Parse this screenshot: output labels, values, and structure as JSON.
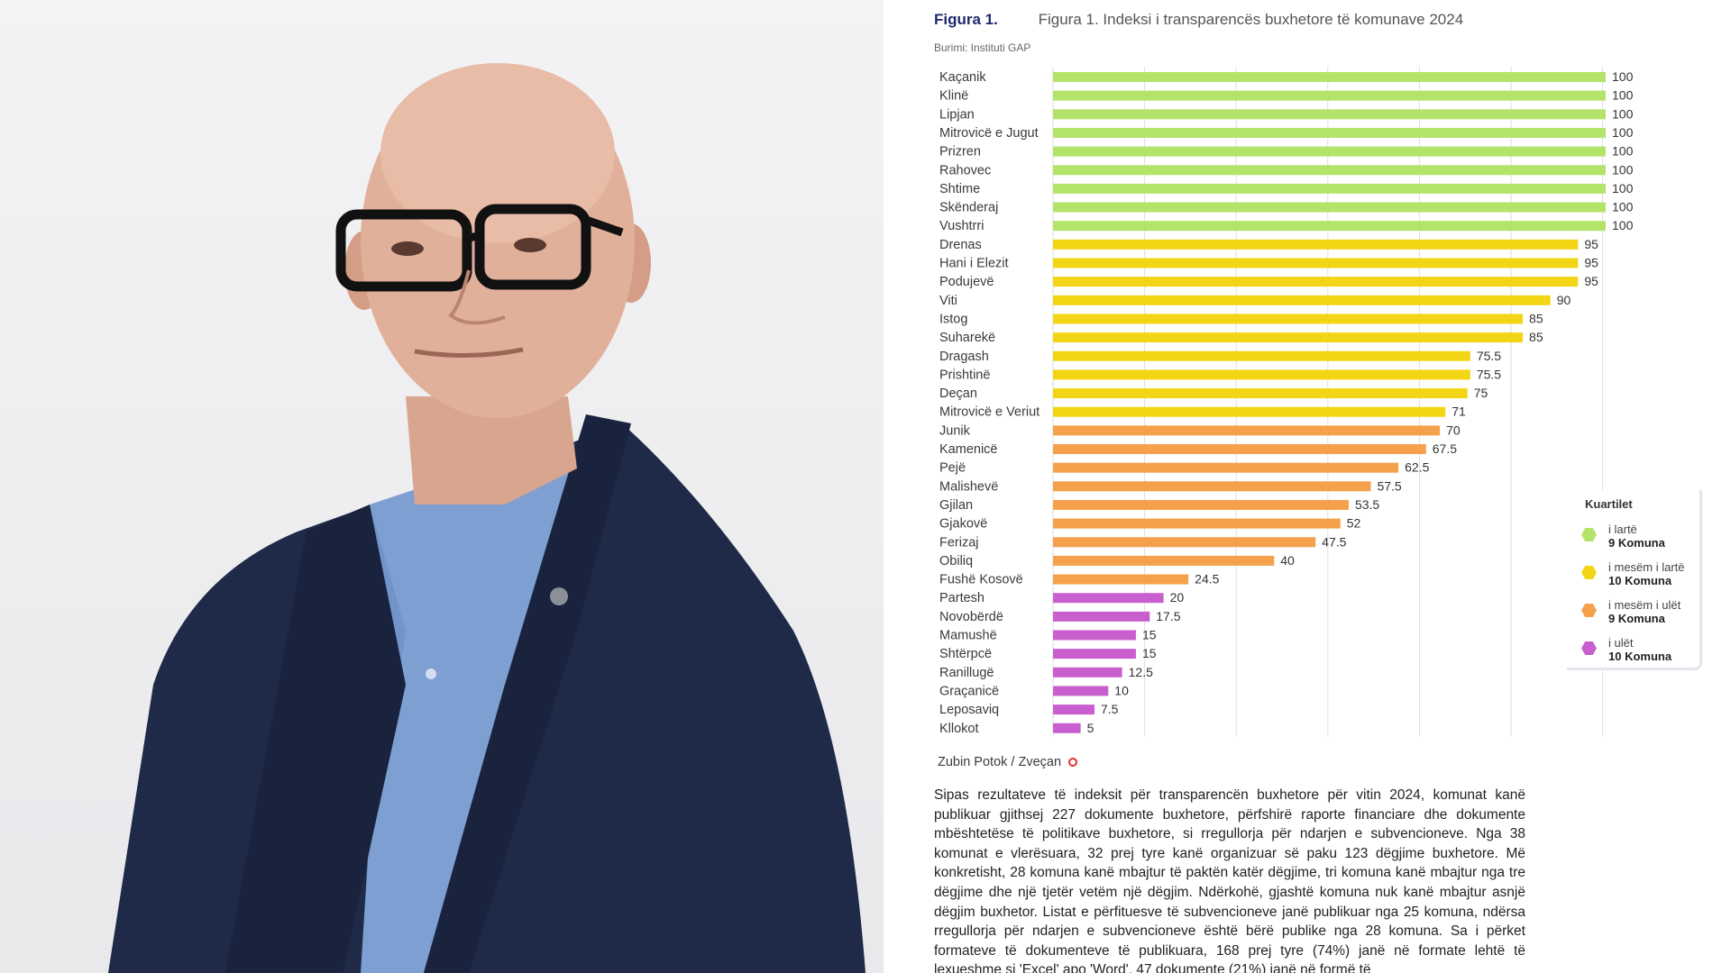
{
  "figure": {
    "label": "Figura 1.",
    "title": "Figura 1. Indeksi i transparencës buxhetore të komunave 2024",
    "source": "Burimi: Instituti GAP"
  },
  "colors": {
    "high": "#b4e36a",
    "upper_middle": "#f2d515",
    "lower_middle": "#f5a04a",
    "low": "#c95fcf"
  },
  "chart_data": {
    "type": "bar",
    "orientation": "horizontal",
    "categories": [
      "Kaçanik",
      "Klinë",
      "Lipjan",
      "Mitrovicë e Jugut",
      "Prizren",
      "Rahovec",
      "Shtime",
      "Skënderaj",
      "Vushtrri",
      "Drenas",
      "Hani i Elezit",
      "Podujevë",
      "Viti",
      "Istog",
      "Suharekë",
      "Dragash",
      "Prishtinë",
      "Deçan",
      "Mitrovicë e Veriut",
      "Junik",
      "Kamenicë",
      "Pejë",
      "Malishevë",
      "Gjilan",
      "Gjakovë",
      "Ferizaj",
      "Obiliq",
      "Fushë Kosovë",
      "Partesh",
      "Novobërdë",
      "Mamushë",
      "Shtërpcë",
      "Ranillugë",
      "Graçanicë",
      "Leposaviq",
      "Kllokot"
    ],
    "values": [
      100,
      100,
      100,
      100,
      100,
      100,
      100,
      100,
      100,
      95,
      95,
      95,
      90,
      85,
      85,
      75.5,
      75.5,
      75,
      71,
      70,
      67.5,
      62.5,
      57.5,
      53.5,
      52,
      47.5,
      40,
      24.5,
      20,
      17.5,
      15,
      15,
      12.5,
      10,
      7.5,
      5
    ],
    "value_labels": [
      "100",
      "100",
      "100",
      "100",
      "100",
      "100",
      "100",
      "100",
      "100",
      "95",
      "95",
      "95",
      "90",
      "85",
      "85",
      "75.5",
      "75.5",
      "75",
      "71",
      "70",
      "67.5",
      "62.5",
      "57.5",
      "53.5",
      "52",
      "47.5",
      "40",
      "24.5",
      "20",
      "17.5",
      "15",
      "15",
      "12.5",
      "10",
      "7.5",
      "5"
    ],
    "quartile": [
      "high",
      "high",
      "high",
      "high",
      "high",
      "high",
      "high",
      "high",
      "high",
      "upper_middle",
      "upper_middle",
      "upper_middle",
      "upper_middle",
      "upper_middle",
      "upper_middle",
      "upper_middle",
      "upper_middle",
      "upper_middle",
      "upper_middle",
      "lower_middle",
      "lower_middle",
      "lower_middle",
      "lower_middle",
      "lower_middle",
      "lower_middle",
      "lower_middle",
      "lower_middle",
      "lower_middle",
      "low",
      "low",
      "low",
      "low",
      "low",
      "low",
      "low",
      "low"
    ],
    "xlim": [
      0,
      100
    ],
    "grid": true,
    "legend": {
      "title": "Kuartilet",
      "placement": "right",
      "items": [
        {
          "key": "high",
          "label": "i lartë",
          "count": "9 Komuna"
        },
        {
          "key": "upper_middle",
          "label": "i mesëm i lartë",
          "count": "10 Komuna"
        },
        {
          "key": "lower_middle",
          "label": "i mesëm i ulët",
          "count": "9 Komuna"
        },
        {
          "key": "low",
          "label": "i ulët",
          "count": "10 Komuna"
        }
      ]
    }
  },
  "footnote": "Zubin Potok / Zveçan",
  "body_text": "Sipas rezultateve të indeksit për transparencën buxhetore për vitin 2024, komunat kanë publikuar gjithsej 227 dokumente buxhetore, përfshirë raporte financiare dhe dokumente mbështetëse të politikave buxhetore, si rregullorja për ndarjen e subvencioneve. Nga 38 komunat e vlerësuara, 32 prej tyre kanë organizuar së paku 123 dëgjime buxhetore. Më konkretisht, 28 komuna kanë mbajtur të paktën katër dëgjime, tri komuna kanë mbajtur nga tre dëgjime dhe një tjetër vetëm një dëgjim. Ndërkohë, gjashtë komuna nuk kanë mbajtur asnjë dëgjim buxhetor. Listat e përfituesve të subvencioneve janë publikuar nga 25 komuna, ndërsa rregullorja për ndarjen e subvencioneve është bërë publike nga 28 komuna. Sa i përket formateve të dokumenteve të publikuara, 168 prej tyre (74%) janë në formate lehtë të lexueshme si 'Excel' apo 'Word', 47 dokumente (21%) janë në formë të"
}
